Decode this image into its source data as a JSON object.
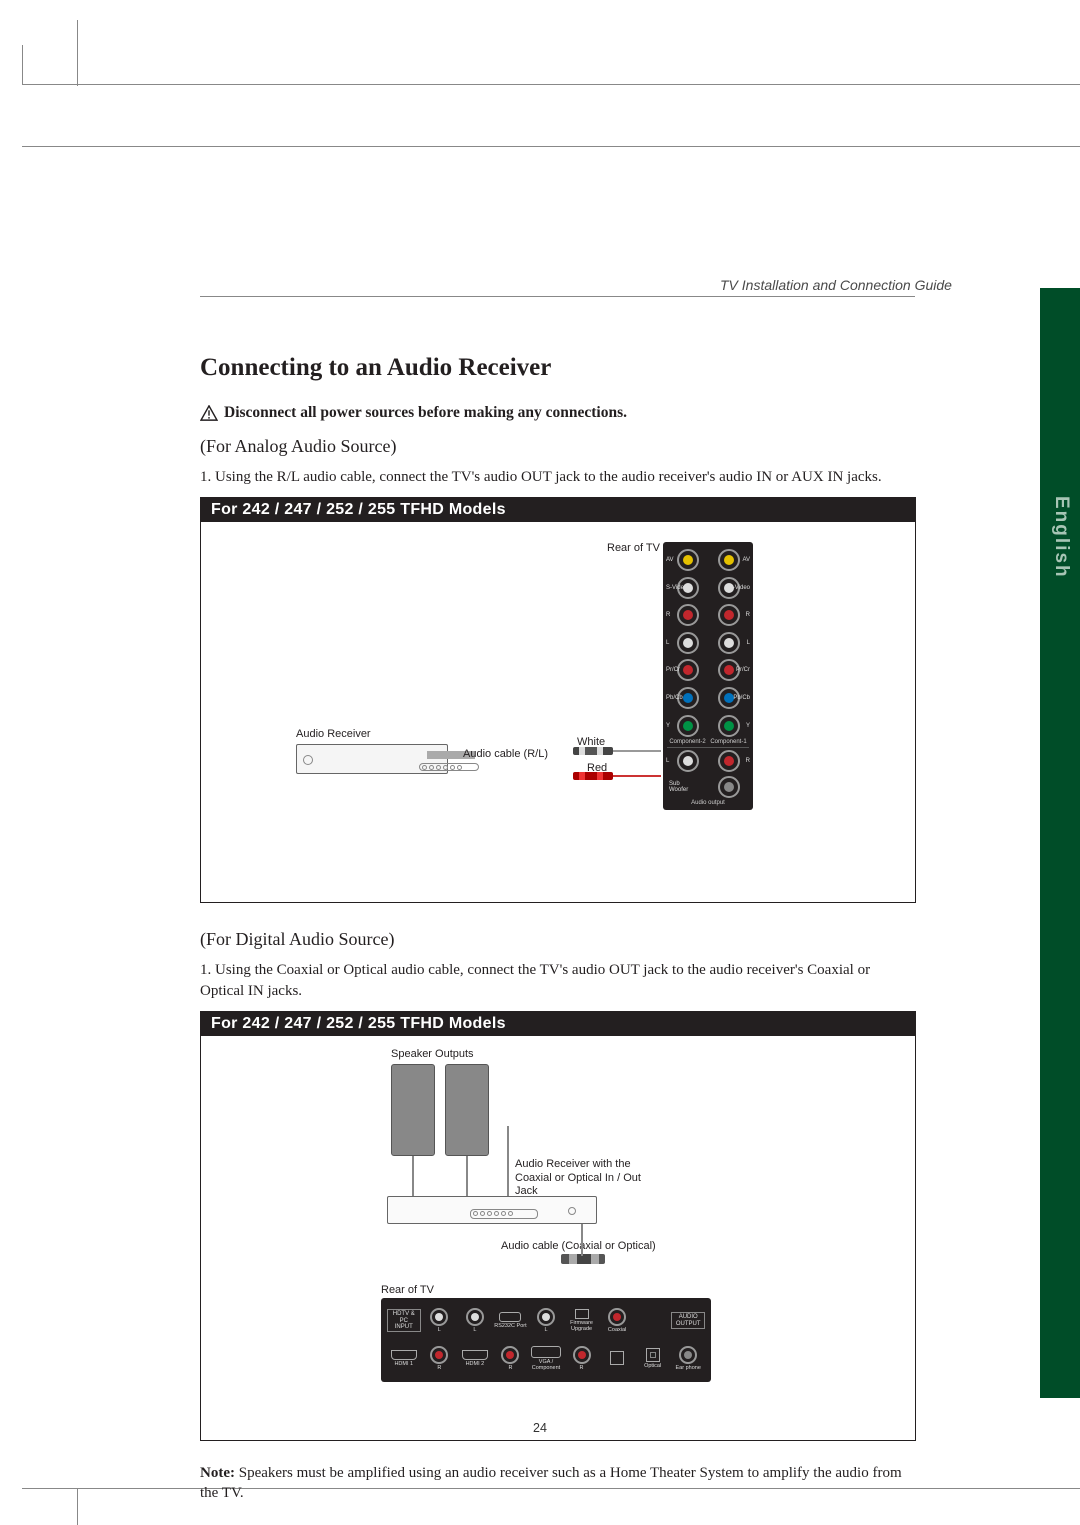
{
  "header": {
    "guide": "TV Installation and Connection Guide"
  },
  "side_tab": {
    "label": "English",
    "bg": "#004d28",
    "fg": "#a7c5b5"
  },
  "title": "Connecting to an Audio Receiver",
  "warning": "Disconnect all power sources before making any connections.",
  "analog": {
    "subhead": "(For Analog Audio Source)",
    "step1": "1. Using the R/L audio cable, connect the TV's audio OUT jack to the audio receiver's audio IN or AUX IN jacks.",
    "panel_title": "For 242 / 247 / 252 / 255 TFHD Models",
    "labels": {
      "rear": "Rear of TV",
      "receiver": "Audio Receiver",
      "cable": "Audio cable (R/L)",
      "white": "White",
      "red": "Red"
    },
    "tv_panel": {
      "rows": [
        [
          {
            "c": "#e5c100",
            "t": "AV"
          },
          {
            "c": "#e5c100",
            "t": "AV"
          }
        ],
        [
          {
            "c": "#dddddd",
            "t": "S-Video"
          },
          {
            "c": "#dddddd",
            "t": "S-Video"
          }
        ],
        [
          {
            "c": "#c1272d",
            "t": "R"
          },
          {
            "c": "#c1272d",
            "t": "R"
          }
        ],
        [
          {
            "c": "#dddddd",
            "t": "L"
          },
          {
            "c": "#dddddd",
            "t": "L"
          }
        ],
        [
          {
            "c": "#c1272d",
            "t": "Pr/Cr"
          },
          {
            "c": "#c1272d",
            "t": "Pr/Cr"
          }
        ],
        [
          {
            "c": "#0071bc",
            "t": "Pb/Cb"
          },
          {
            "c": "#0071bc",
            "t": "Pb/Cb"
          }
        ],
        [
          {
            "c": "#009245",
            "t": "Y"
          },
          {
            "c": "#009245",
            "t": "Y"
          }
        ]
      ],
      "foot": [
        "Component-2",
        "Component-1"
      ],
      "audio_out": {
        "rows": [
          [
            {
              "c": "#dddddd",
              "t": "L"
            },
            {
              "c": "#c1272d",
              "t": "R"
            }
          ],
          [
            {
              "c": "#888888",
              "t": "Sub Woofer",
              "span": 2
            }
          ]
        ],
        "label": "Audio output"
      }
    }
  },
  "digital": {
    "subhead": "(For Digital Audio Source)",
    "step1": "1. Using the Coaxial or Optical audio cable, connect the TV's audio OUT jack to the audio receiver's Coaxial or Optical IN jacks.",
    "panel_title": "For 242 / 247 / 252 / 255 TFHD Models",
    "labels": {
      "speakers": "Speaker Outputs",
      "receiver": "Audio Receiver with the Coaxial or Optical In / Out Jack",
      "cable": "Audio cable (Coaxial or Optical)",
      "rear": "Rear of TV"
    },
    "tv_panel2": {
      "left_box": "HDTV & PC INPUT",
      "right_box": "AUDIO OUTPUT",
      "top": [
        {
          "ring": "#dddddd",
          "t": "L"
        },
        {
          "ring": "#dddddd",
          "t": "L"
        },
        {
          "port": "rs232",
          "t": "RS232C Port"
        },
        {
          "ring": "#dddddd",
          "t": "L"
        },
        {
          "port": "fw",
          "t": "Firmware Upgrade"
        },
        {
          "ring": "#c1272d",
          "t": "Coaxial"
        }
      ],
      "bottom": [
        {
          "port": "hdmi",
          "t": "HDMI 1"
        },
        {
          "ring": "#c1272d",
          "t": "R"
        },
        {
          "port": "hdmi",
          "t": "HDMI 2"
        },
        {
          "ring": "#c1272d",
          "t": "R"
        },
        {
          "port": "vga",
          "t": "VGA / Component"
        },
        {
          "ring": "#c1272d",
          "t": "R"
        },
        {
          "port": "usb",
          "t": ""
        },
        {
          "port": "opt",
          "t": "Optical"
        },
        {
          "ring": "#888888",
          "t": "Ear phone"
        }
      ]
    }
  },
  "note": "Note: Speakers must be amplified using an audio receiver such as a Home Theater System to amplify the audio from the TV.",
  "page_number": "24"
}
